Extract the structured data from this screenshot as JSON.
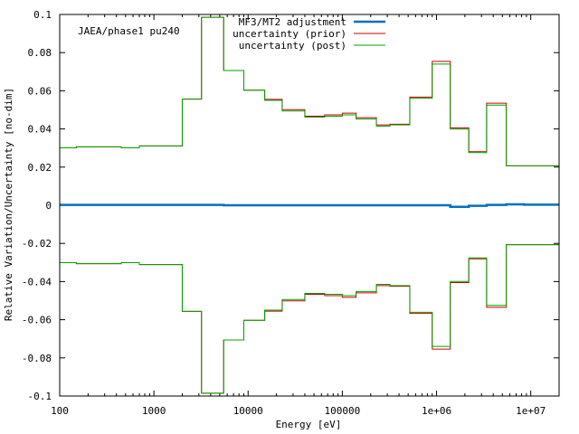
{
  "chart_data": {
    "type": "line",
    "title": "",
    "annotation": "JAEA/phase1 pu240",
    "xlabel": "Energy [eV]",
    "ylabel": "Relative Variation/Uncertainty [no-dim]",
    "xscale": "log",
    "xlim": [
      100,
      20000000
    ],
    "ylim": [
      -0.1,
      0.1
    ],
    "x_ticks": [
      {
        "value": 100,
        "label": "100"
      },
      {
        "value": 1000,
        "label": "1000"
      },
      {
        "value": 10000,
        "label": "10000"
      },
      {
        "value": 100000,
        "label": "100000"
      },
      {
        "value": 1000000,
        "label": "1e+06"
      },
      {
        "value": 10000000,
        "label": "1e+07"
      }
    ],
    "y_ticks": [
      {
        "value": 0.1,
        "label": "0.1"
      },
      {
        "value": 0.08,
        "label": "0.08"
      },
      {
        "value": 0.06,
        "label": "0.06"
      },
      {
        "value": 0.04,
        "label": "0.04"
      },
      {
        "value": 0.02,
        "label": "0.02"
      },
      {
        "value": 0,
        "label": "0"
      },
      {
        "value": -0.02,
        "label": "-0.02"
      },
      {
        "value": -0.04,
        "label": "-0.04"
      },
      {
        "value": -0.06,
        "label": "-0.06"
      },
      {
        "value": -0.08,
        "label": "-0.08"
      },
      {
        "value": -0.1,
        "label": "-0.1"
      }
    ],
    "legend_position": "top-right",
    "bin_edges": [
      100,
      150,
      450,
      700,
      2000,
      3200,
      5500,
      9000,
      15000,
      23000,
      40000,
      65000,
      100000,
      140000,
      230000,
      320000,
      520000,
      900000,
      1400000,
      2200000,
      3400000,
      5500000,
      8500000,
      20000000
    ],
    "series": [
      {
        "name": "MF3/MT2 adjustment",
        "color": "#0070c0",
        "symmetric": false,
        "values": [
          0.0002,
          0.0002,
          0.0002,
          0.0002,
          0.0002,
          0.0002,
          0.0,
          0.0,
          0.0,
          0.0,
          0.0,
          0.0,
          0.0,
          0.0,
          0.0,
          0.0,
          0.0,
          0.0,
          -0.0008,
          -0.0003,
          0.0002,
          0.0005,
          0.0003
        ]
      },
      {
        "name": "uncertainty (prior)",
        "color": "#cc0000",
        "symmetric": true,
        "values": [
          0.0301,
          0.0306,
          0.0301,
          0.0311,
          0.0556,
          0.0985,
          0.0706,
          0.0603,
          0.0555,
          0.0501,
          0.0467,
          0.0474,
          0.0483,
          0.0459,
          0.0421,
          0.0425,
          0.0567,
          0.0754,
          0.0405,
          0.0281,
          0.0535,
          0.0207,
          0.0207
        ]
      },
      {
        "name": "uncertainty (post)",
        "color": "#00a000",
        "symmetric": true,
        "values": [
          0.0301,
          0.0306,
          0.0301,
          0.0311,
          0.0556,
          0.0985,
          0.0706,
          0.0603,
          0.055,
          0.0494,
          0.0462,
          0.0467,
          0.0474,
          0.0452,
          0.0415,
          0.0421,
          0.0561,
          0.074,
          0.0399,
          0.0276,
          0.0525,
          0.0207,
          0.0207
        ]
      }
    ]
  }
}
